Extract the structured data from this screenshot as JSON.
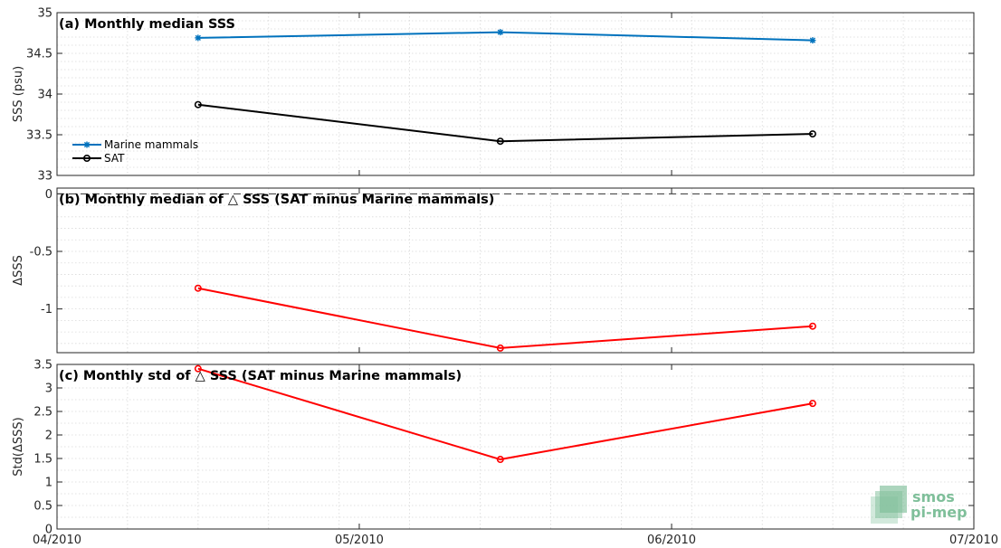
{
  "chart_data": [
    {
      "type": "line",
      "title": "(a) Monthly median SSS",
      "ylabel": "SSS (psu)",
      "xlabel": "",
      "ylim": [
        33,
        35
      ],
      "yticks": [
        33,
        33.5,
        34,
        34.5,
        35
      ],
      "ytick_labels": [
        "33",
        "33.5",
        "34",
        "34.5",
        "35"
      ],
      "xlim": [
        "2010-04-01",
        "2010-07-01"
      ],
      "grid": true,
      "legend": "bottom-left",
      "series": [
        {
          "name": "Marine mammals",
          "color": "#0072bd",
          "marker": "asterisk",
          "x": [
            "2010-04-15",
            "2010-05-15",
            "2010-06-15"
          ],
          "values": [
            34.69,
            34.76,
            34.66
          ]
        },
        {
          "name": "SAT",
          "color": "#000000",
          "marker": "diamond",
          "x": [
            "2010-04-15",
            "2010-05-15",
            "2010-06-15"
          ],
          "values": [
            33.87,
            33.42,
            33.51
          ]
        }
      ]
    },
    {
      "type": "line",
      "title": "(b) Monthly median of △ SSS (SAT minus Marine mammals)",
      "ylabel": "ΔSSS",
      "xlabel": "",
      "ylim": [
        -1.38,
        0.05
      ],
      "yticks": [
        -1,
        -0.5,
        0
      ],
      "ytick_labels": [
        "-1",
        "-0.5",
        "0"
      ],
      "xlim": [
        "2010-04-01",
        "2010-07-01"
      ],
      "grid": true,
      "reference_line": 0,
      "series": [
        {
          "color": "#ff0000",
          "marker": "diamond",
          "x": [
            "2010-04-15",
            "2010-05-15",
            "2010-06-15"
          ],
          "values": [
            -0.82,
            -1.34,
            -1.15
          ]
        }
      ]
    },
    {
      "type": "line",
      "title": "(c) Monthly std of △ SSS (SAT minus Marine mammals)",
      "ylabel": "Std(ΔSSS)",
      "xlabel": "",
      "ylim": [
        0,
        3.5
      ],
      "yticks": [
        0,
        0.5,
        1,
        1.5,
        2,
        2.5,
        3,
        3.5
      ],
      "ytick_labels": [
        "0",
        "0.5",
        "1",
        "1.5",
        "2",
        "2.5",
        "3",
        "3.5"
      ],
      "xlim": [
        "2010-04-01",
        "2010-07-01"
      ],
      "xticks": [
        "2010-04-01",
        "2010-05-01",
        "2010-06-01",
        "2010-07-01"
      ],
      "xtick_labels": [
        "04/2010",
        "05/2010",
        "06/2010",
        "07/2010"
      ],
      "grid": true,
      "series": [
        {
          "color": "#ff0000",
          "marker": "diamond",
          "x": [
            "2010-04-15",
            "2010-05-15",
            "2010-06-15"
          ],
          "values": [
            3.41,
            1.48,
            2.67
          ]
        }
      ]
    }
  ],
  "logo": {
    "line1": "smos",
    "line2": "pi-mep",
    "color": "#7fbf9a"
  }
}
